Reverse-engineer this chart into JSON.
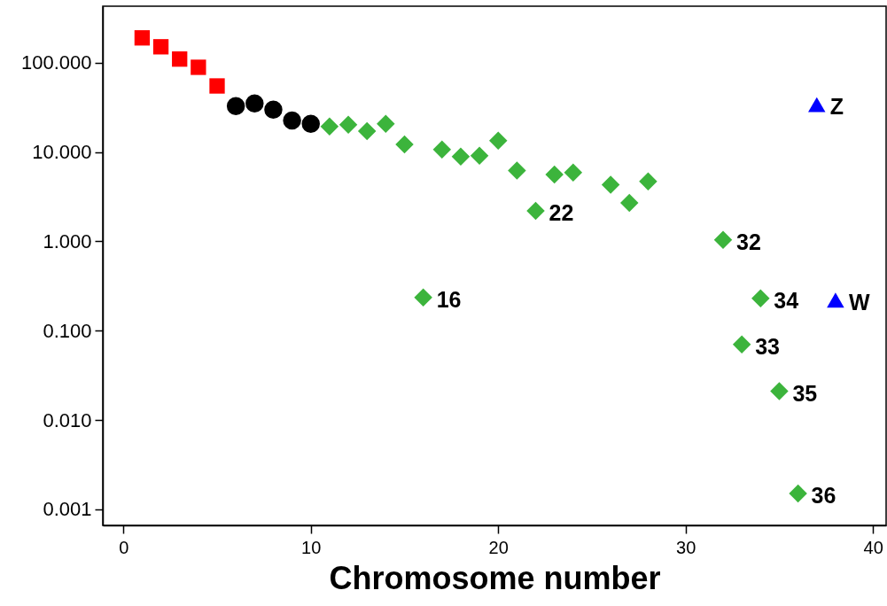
{
  "chart_data": {
    "type": "scatter",
    "xlabel": "Chromosome number",
    "xlim": [
      -1.1,
      40.7
    ],
    "xticks": [
      0,
      10,
      20,
      30,
      40
    ],
    "ylim": [
      0.00066,
      430
    ],
    "log": "y",
    "yticks": [
      {
        "value": 0.001,
        "label": "0.001"
      },
      {
        "value": 0.01,
        "label": "0.010"
      },
      {
        "value": 0.1,
        "label": "0.100"
      },
      {
        "value": 1,
        "label": "1.000"
      },
      {
        "value": 10,
        "label": "10.000"
      },
      {
        "value": 100,
        "label": "100.000"
      }
    ],
    "grid": false,
    "series": [
      {
        "color": "#ff0000",
        "marker": "square",
        "x": [
          1,
          2,
          3,
          4,
          5
        ],
        "values": [
          190,
          151,
          110,
          89,
          55
        ]
      },
      {
        "color": "#000000",
        "marker": "circle",
        "x": [
          6,
          7,
          8,
          9,
          10
        ],
        "values": [
          32.7,
          35,
          29.8,
          22.6,
          20.7
        ]
      },
      {
        "color": "#3cb43c",
        "marker": "diamond",
        "x": [
          11,
          12,
          13,
          14,
          15,
          16,
          17,
          18,
          19,
          20,
          21,
          22,
          23,
          24,
          26,
          27,
          28,
          32,
          33,
          34,
          35,
          36
        ],
        "values": [
          19.3,
          20.2,
          17.2,
          20.7,
          12.2,
          0.235,
          10.7,
          8.9,
          9.1,
          13.4,
          6.2,
          2.2,
          5.6,
          5.9,
          4.3,
          2.7,
          4.7,
          1.04,
          0.07,
          0.23,
          0.021,
          0.0015
        ]
      },
      {
        "color": "#0000ff",
        "marker": "triangle",
        "x": [
          37,
          38
        ],
        "values": [
          34,
          0.22
        ]
      }
    ],
    "annotations": [
      {
        "text": "16",
        "x": 16,
        "y": 0.235
      },
      {
        "text": "22",
        "x": 22,
        "y": 2.2
      },
      {
        "text": "32",
        "x": 32,
        "y": 1.04
      },
      {
        "text": "33",
        "x": 33,
        "y": 0.07
      },
      {
        "text": "34",
        "x": 34,
        "y": 0.23
      },
      {
        "text": "35",
        "x": 35,
        "y": 0.021
      },
      {
        "text": "36",
        "x": 36,
        "y": 0.0015
      },
      {
        "text": "Z",
        "x": 37,
        "y": 34
      },
      {
        "text": "W",
        "x": 38,
        "y": 0.22
      }
    ]
  }
}
